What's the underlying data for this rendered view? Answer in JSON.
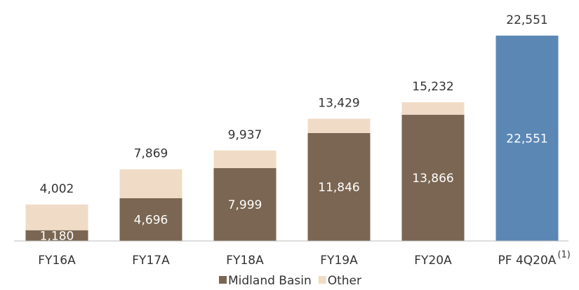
{
  "chart_data": {
    "type": "stacked_bar",
    "categories": [
      "FY16A",
      "FY17A",
      "FY18A",
      "FY19A",
      "FY20A",
      "PF 4Q20A"
    ],
    "category_notes": [
      null,
      null,
      null,
      null,
      null,
      "(1)"
    ],
    "series": [
      {
        "name": "Midland Basin",
        "color": "#7a6652",
        "colors": [
          "#7a6652",
          "#7a6652",
          "#7a6652",
          "#7a6652",
          "#7a6652",
          "#5b87b5"
        ],
        "values": [
          1180,
          4696,
          7999,
          11846,
          13866,
          22551
        ],
        "value_labels": [
          "1,180",
          "4,696",
          "7,999",
          "11,846",
          "13,866",
          "22,551"
        ]
      },
      {
        "name": "Other",
        "color": "#f0dcc6",
        "values": [
          2822,
          3173,
          1938,
          1583,
          1366,
          null
        ]
      }
    ],
    "totals": {
      "values": [
        4002,
        7869,
        9937,
        13429,
        15232,
        22551
      ],
      "value_labels": [
        "4,002",
        "7,869",
        "9,937",
        "13,429",
        "15,232",
        "22,551"
      ]
    },
    "ylim": [
      0,
      25000
    ]
  }
}
